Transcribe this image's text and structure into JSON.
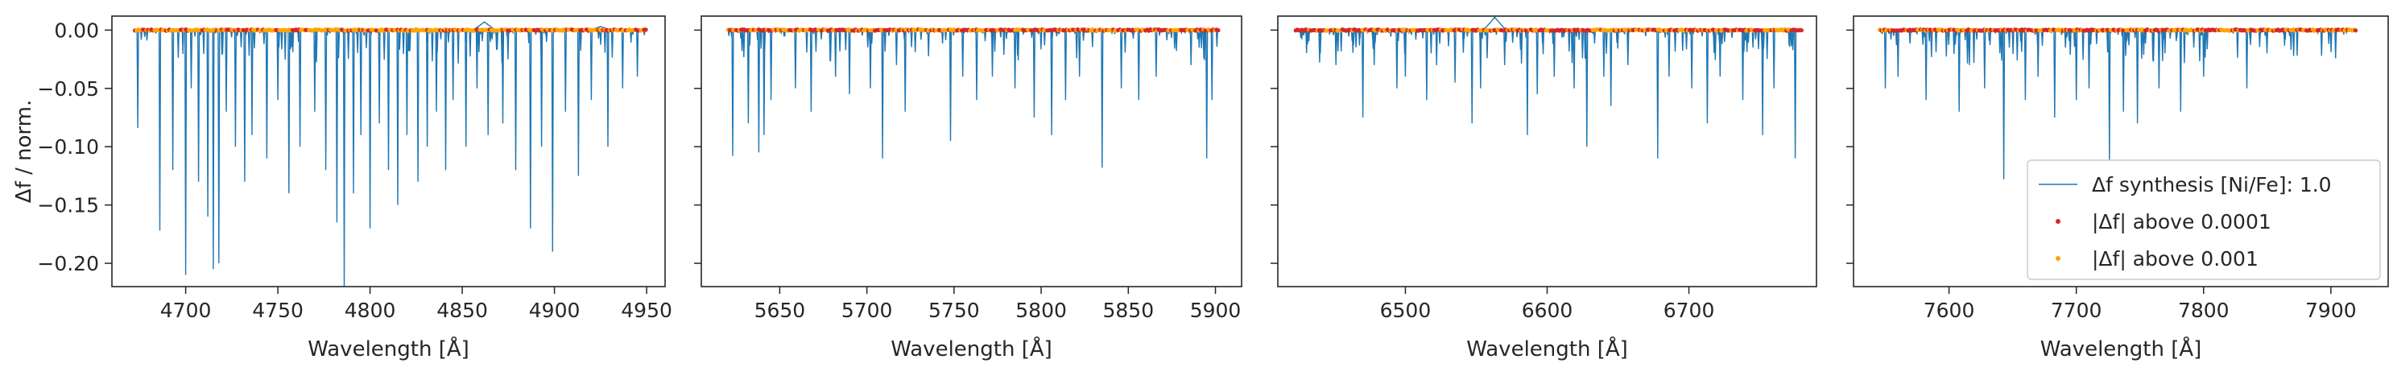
{
  "chart_data": [
    {
      "type": "line",
      "panel": 1,
      "xlabel": "Wavelength [Å]",
      "ylabel": "Δf / norm.",
      "xlim": [
        4660,
        4960
      ],
      "ylim": [
        -0.22,
        0.012
      ],
      "xticks": [
        4700,
        4750,
        4800,
        4850,
        4900,
        4950
      ],
      "yticks": [
        0.0,
        -0.05,
        -0.1,
        -0.15,
        -0.2
      ],
      "ytick_labels": [
        "0.00",
        "−0.05",
        "−0.10",
        "−0.15",
        "−0.20"
      ],
      "grid": false,
      "data_range": [
        4672,
        4950
      ],
      "series_line": {
        "color": "#1f77b4",
        "lines": [
          [
            4674,
            -0.084
          ],
          [
            4686,
            -0.172
          ],
          [
            4693,
            -0.12
          ],
          [
            4700,
            -0.21
          ],
          [
            4703,
            -0.05
          ],
          [
            4707,
            -0.13
          ],
          [
            4712,
            -0.16
          ],
          [
            4715,
            -0.205
          ],
          [
            4718,
            -0.2
          ],
          [
            4722,
            -0.07
          ],
          [
            4727,
            -0.1
          ],
          [
            4732,
            -0.13
          ],
          [
            4736,
            -0.09
          ],
          [
            4744,
            -0.11
          ],
          [
            4750,
            -0.06
          ],
          [
            4756,
            -0.14
          ],
          [
            4762,
            -0.1
          ],
          [
            4770,
            -0.07
          ],
          [
            4776,
            -0.12
          ],
          [
            4782,
            -0.165
          ],
          [
            4786,
            -0.222
          ],
          [
            4791,
            -0.14
          ],
          [
            4795,
            -0.09
          ],
          [
            4800,
            -0.17
          ],
          [
            4805,
            -0.08
          ],
          [
            4810,
            -0.12
          ],
          [
            4815,
            -0.15
          ],
          [
            4820,
            -0.09
          ],
          [
            4826,
            -0.13
          ],
          [
            4831,
            -0.1
          ],
          [
            4836,
            -0.07
          ],
          [
            4841,
            -0.12
          ],
          [
            4845,
            -0.06
          ],
          [
            4852,
            -0.1
          ],
          [
            4858,
            -0.05
          ],
          [
            4864,
            -0.09
          ],
          [
            4872,
            -0.08
          ],
          [
            4879,
            -0.12
          ],
          [
            4887,
            -0.17
          ],
          [
            4893,
            -0.1
          ],
          [
            4899,
            -0.19
          ],
          [
            4906,
            -0.07
          ],
          [
            4913,
            -0.125
          ],
          [
            4920,
            -0.06
          ],
          [
            4929,
            -0.1
          ],
          [
            4937,
            -0.05
          ],
          [
            4945,
            -0.04
          ]
        ],
        "bumps": [
          [
            4862,
            0.007
          ],
          [
            4925,
            0.003
          ]
        ]
      },
      "marker_red_fraction": 0.35
    },
    {
      "type": "line",
      "panel": 2,
      "xlabel": "Wavelength [Å]",
      "xlim": [
        5605,
        5915
      ],
      "ylim": [
        -0.22,
        0.012
      ],
      "xticks": [
        5650,
        5700,
        5750,
        5800,
        5850,
        5900
      ],
      "grid": false,
      "data_range": [
        5620,
        5902
      ],
      "series_line": {
        "color": "#1f77b4",
        "lines": [
          [
            5623,
            -0.108
          ],
          [
            5632,
            -0.08
          ],
          [
            5638,
            -0.105
          ],
          [
            5641,
            -0.09
          ],
          [
            5645,
            -0.06
          ],
          [
            5659,
            -0.05
          ],
          [
            5668,
            -0.07
          ],
          [
            5682,
            -0.04
          ],
          [
            5690,
            -0.055
          ],
          [
            5702,
            -0.05
          ],
          [
            5709,
            -0.11
          ],
          [
            5717,
            -0.03
          ],
          [
            5722,
            -0.07
          ],
          [
            5748,
            -0.095
          ],
          [
            5755,
            -0.04
          ],
          [
            5763,
            -0.06
          ],
          [
            5772,
            -0.04
          ],
          [
            5785,
            -0.05
          ],
          [
            5796,
            -0.075
          ],
          [
            5806,
            -0.09
          ],
          [
            5814,
            -0.06
          ],
          [
            5822,
            -0.04
          ],
          [
            5835,
            -0.118
          ],
          [
            5846,
            -0.05
          ],
          [
            5856,
            -0.06
          ],
          [
            5866,
            -0.04
          ],
          [
            5886,
            -0.03
          ],
          [
            5895,
            -0.11
          ],
          [
            5898,
            -0.06
          ]
        ],
        "bumps": []
      },
      "marker_red_fraction": 0.6
    },
    {
      "type": "line",
      "panel": 3,
      "xlabel": "Wavelength [Å]",
      "xlim": [
        6410,
        6790
      ],
      "ylim": [
        -0.22,
        0.012
      ],
      "xticks": [
        6500,
        6600,
        6700
      ],
      "grid": false,
      "data_range": [
        6422,
        6780
      ],
      "series_line": {
        "color": "#1f77b4",
        "lines": [
          [
            6431,
            -0.012
          ],
          [
            6440,
            -0.02
          ],
          [
            6451,
            -0.03
          ],
          [
            6470,
            -0.075
          ],
          [
            6478,
            -0.03
          ],
          [
            6494,
            -0.05
          ],
          [
            6500,
            -0.04
          ],
          [
            6515,
            -0.06
          ],
          [
            6522,
            -0.03
          ],
          [
            6535,
            -0.045
          ],
          [
            6547,
            -0.08
          ],
          [
            6553,
            -0.05
          ],
          [
            6570,
            -0.03
          ],
          [
            6586,
            -0.09
          ],
          [
            6593,
            -0.055
          ],
          [
            6605,
            -0.04
          ],
          [
            6619,
            -0.05
          ],
          [
            6628,
            -0.1
          ],
          [
            6640,
            -0.04
          ],
          [
            6645,
            -0.065
          ],
          [
            6657,
            -0.03
          ],
          [
            6678,
            -0.11
          ],
          [
            6686,
            -0.04
          ],
          [
            6702,
            -0.05
          ],
          [
            6713,
            -0.08
          ],
          [
            6722,
            -0.04
          ],
          [
            6738,
            -0.06
          ],
          [
            6752,
            -0.09
          ],
          [
            6760,
            -0.05
          ],
          [
            6775,
            -0.11
          ]
        ],
        "bumps": [
          [
            6563,
            0.011
          ]
        ]
      },
      "marker_red_fraction": 0.6
    },
    {
      "type": "line",
      "panel": 4,
      "xlabel": "Wavelength [Å]",
      "xlim": [
        7525,
        7945
      ],
      "ylim": [
        -0.22,
        0.012
      ],
      "xticks": [
        7600,
        7700,
        7800,
        7900
      ],
      "grid": false,
      "data_range": [
        7545,
        7920
      ],
      "series_line": {
        "color": "#1f77b4",
        "lines": [
          [
            7550,
            -0.05
          ],
          [
            7560,
            -0.04
          ],
          [
            7582,
            -0.06
          ],
          [
            7608,
            -0.07
          ],
          [
            7616,
            -0.03
          ],
          [
            7628,
            -0.05
          ],
          [
            7643,
            -0.128
          ],
          [
            7660,
            -0.06
          ],
          [
            7670,
            -0.04
          ],
          [
            7683,
            -0.075
          ],
          [
            7700,
            -0.06
          ],
          [
            7710,
            -0.05
          ],
          [
            7726,
            -0.112
          ],
          [
            7737,
            -0.07
          ],
          [
            7748,
            -0.08
          ],
          [
            7765,
            -0.05
          ],
          [
            7782,
            -0.07
          ],
          [
            7800,
            -0.04
          ],
          [
            7834,
            -0.05
          ]
        ],
        "bumps": []
      },
      "marker_red_fraction": 0.55
    }
  ],
  "legend": {
    "placement": "lower-right",
    "entries": [
      {
        "label": "Δf synthesis [Ni/Fe]: 1.0",
        "kind": "line",
        "color": "#1f77b4"
      },
      {
        "label": "|Δf| above 0.0001",
        "kind": "point",
        "color": "#d62728"
      },
      {
        "label": "|Δf| above 0.001",
        "kind": "point",
        "color": "#ffa500"
      }
    ]
  },
  "colors": {
    "line": "#1f77b4",
    "above_0001": "#d62728",
    "above_001": "#ffa500"
  }
}
